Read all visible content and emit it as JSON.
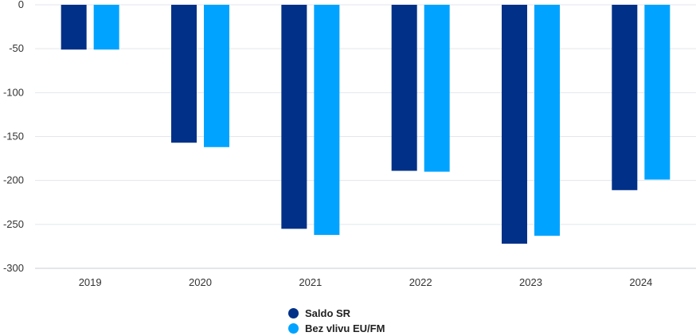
{
  "chart_data": {
    "type": "bar",
    "title": "",
    "xlabel": "",
    "ylabel": "",
    "categories": [
      "2019",
      "2020",
      "2021",
      "2022",
      "2023",
      "2024"
    ],
    "series": [
      {
        "name": "Saldo SR",
        "color": "#003087",
        "values": [
          -51,
          -157,
          -255,
          -189,
          -272,
          -211
        ]
      },
      {
        "name": "Bez vlivu EU/FM",
        "color": "#00a3ff",
        "values": [
          -51,
          -162,
          -262,
          -190,
          -263,
          -199
        ]
      }
    ],
    "ylim": [
      -300,
      0
    ],
    "yticks": [
      0,
      -50,
      -100,
      -150,
      -200,
      -250,
      -300
    ],
    "ytick_labels": [
      "0",
      "-50",
      "-100",
      "-150",
      "-200",
      "-250",
      "-300"
    ],
    "grid": true,
    "legend_position": "bottom"
  }
}
